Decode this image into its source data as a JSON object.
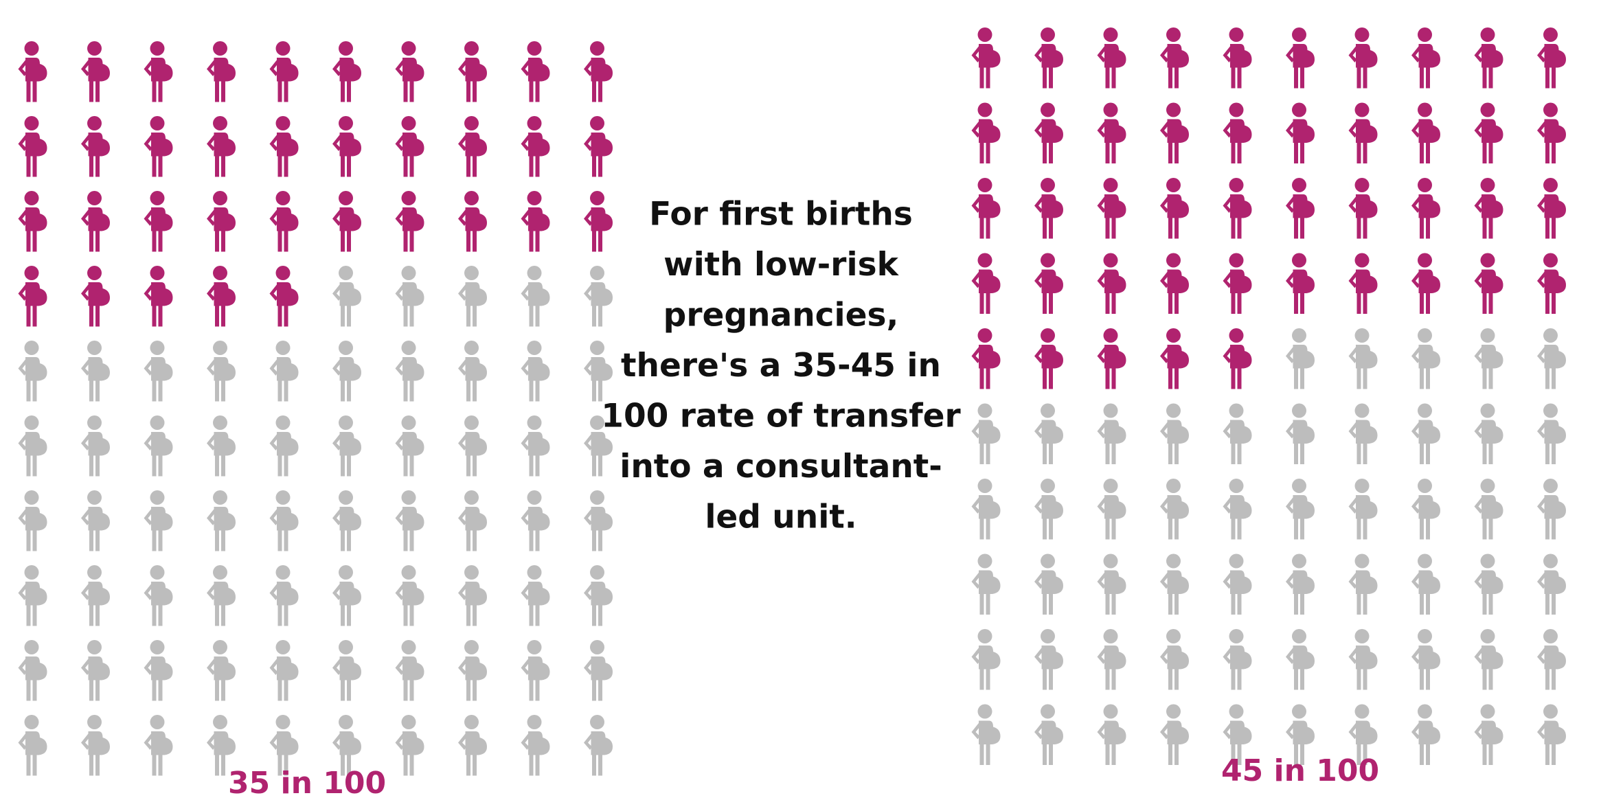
{
  "chart_data": [
    {
      "type": "pictograph",
      "values": [
        35
      ],
      "value_labels": [
        "35 in 100"
      ],
      "total": 100,
      "color": "#b0236f",
      "rest_color": "#bdbdbd"
    },
    {
      "type": "pictograph",
      "values": [
        45
      ],
      "value_labels": [
        "45 in 100"
      ],
      "total": 100,
      "color": "#b0236f",
      "rest_color": "#bdbdbd"
    }
  ],
  "annotation": [
    "For first births",
    "with low-risk",
    "pregnancies,",
    "there's a 35-45 in",
    "100 rate of transfer",
    "into a consultant-",
    "led unit."
  ]
}
